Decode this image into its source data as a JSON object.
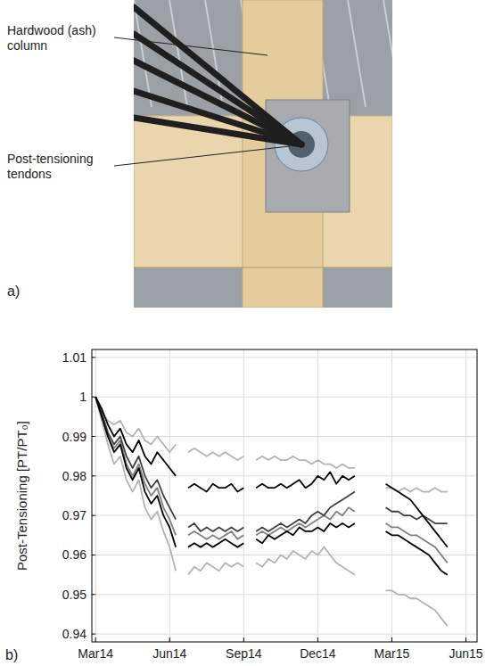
{
  "panel_a": {
    "labels": [
      "Hardwood (ash) column",
      "Post-tensioning tendons"
    ],
    "letter": "a)"
  },
  "chart_data": {
    "type": "line",
    "panel_label": "b)",
    "ylabel": "Post-Tensioning [PT/PT₀]",
    "x": [
      0,
      0.25,
      0.5,
      0.75,
      1,
      1.25,
      1.5,
      1.75,
      2,
      2.25,
      2.5,
      2.75,
      3,
      3.25,
      3.5,
      3.75,
      4,
      4.25,
      4.5,
      4.75,
      5,
      5.25,
      5.5,
      5.75,
      6,
      6.25,
      6.5,
      6.75,
      7,
      7.25,
      7.5,
      7.75,
      8,
      8.25,
      8.5,
      8.75,
      9,
      9.25,
      9.5,
      9.75,
      10,
      10.25,
      10.5,
      10.75,
      11,
      11.25,
      11.5,
      11.75,
      12,
      12.25,
      12.5,
      12.75,
      13,
      13.25,
      13.5,
      13.75,
      14,
      14.25
    ],
    "xlim": [
      -0.15,
      15.45
    ],
    "xticks": [
      {
        "value": 0,
        "label": "Mar14"
      },
      {
        "value": 3,
        "label": "Jun14"
      },
      {
        "value": 6,
        "label": "Sep14"
      },
      {
        "value": 9,
        "label": "Dec14"
      },
      {
        "value": 12,
        "label": "Mar15"
      },
      {
        "value": 15,
        "label": "Jun15"
      }
    ],
    "ylim": [
      0.938,
      1.012
    ],
    "yticks": [
      0.94,
      0.95,
      0.96,
      0.97,
      0.98,
      0.99,
      1,
      1.01
    ],
    "grid": true,
    "series": [
      {
        "color": "#b3b3b3",
        "values": [
          1.0,
          0.996,
          0.994,
          0.993,
          0.994,
          0.991,
          0.99,
          0.992,
          0.989,
          0.988,
          0.99,
          0.988,
          0.986,
          0.988,
          null,
          0.986,
          0.987,
          0.986,
          0.985,
          0.986,
          0.985,
          0.986,
          0.985,
          0.984,
          0.985,
          null,
          0.984,
          0.985,
          0.984,
          0.985,
          0.984,
          0.984,
          0.985,
          0.984,
          0.984,
          0.983,
          0.984,
          0.983,
          0.983,
          0.982,
          0.983,
          0.982,
          0.982,
          null,
          null,
          null,
          null,
          0.977,
          0.977,
          0.976,
          0.977,
          0.976,
          0.977,
          0.976,
          0.976,
          0.977,
          0.976,
          0.976
        ]
      },
      {
        "color": "#b3b3b3",
        "values": [
          1.0,
          0.994,
          0.988,
          0.983,
          0.985,
          0.979,
          0.976,
          0.979,
          0.972,
          0.969,
          0.971,
          0.966,
          0.962,
          0.956,
          null,
          0.955,
          0.957,
          0.956,
          0.958,
          0.957,
          0.956,
          0.958,
          0.957,
          0.958,
          0.957,
          null,
          0.958,
          0.957,
          0.959,
          0.958,
          0.96,
          0.959,
          0.961,
          0.96,
          0.959,
          0.961,
          0.96,
          0.962,
          0.96,
          0.958,
          0.957,
          0.956,
          0.955,
          null,
          null,
          null,
          null,
          0.951,
          0.951,
          0.95,
          0.95,
          0.949,
          0.949,
          0.948,
          0.947,
          0.946,
          0.944,
          0.942
        ]
      },
      {
        "color": "#808080",
        "values": [
          1.0,
          0.995,
          0.99,
          0.987,
          0.989,
          0.983,
          0.98,
          0.983,
          0.978,
          0.975,
          0.977,
          0.972,
          0.969,
          0.965,
          null,
          0.965,
          0.966,
          0.965,
          0.964,
          0.965,
          0.964,
          0.965,
          0.966,
          0.964,
          0.965,
          null,
          0.965,
          0.966,
          0.965,
          0.966,
          0.967,
          0.966,
          0.967,
          0.968,
          0.967,
          0.968,
          0.969,
          0.97,
          0.969,
          0.971,
          0.97,
          0.972,
          0.971,
          null,
          null,
          null,
          null,
          0.968,
          0.967,
          0.967,
          0.966,
          0.965,
          0.965,
          0.964,
          0.963,
          0.962,
          0.96,
          0.958
        ]
      },
      {
        "color": "#404040",
        "values": [
          1.0,
          0.996,
          0.991,
          0.988,
          0.99,
          0.985,
          0.982,
          0.985,
          0.98,
          0.977,
          0.979,
          0.975,
          0.972,
          0.969,
          null,
          0.967,
          0.968,
          0.966,
          0.967,
          0.966,
          0.967,
          0.966,
          0.967,
          0.966,
          0.967,
          null,
          0.966,
          0.967,
          0.966,
          0.967,
          0.968,
          0.967,
          0.968,
          0.969,
          0.968,
          0.97,
          0.971,
          0.97,
          0.972,
          0.973,
          0.974,
          0.975,
          0.976,
          null,
          null,
          null,
          null,
          0.972,
          0.971,
          0.971,
          0.97,
          0.97,
          0.969,
          0.97,
          0.969,
          0.968,
          0.968,
          0.968
        ]
      },
      {
        "color": "#000000",
        "values": [
          1.0,
          0.997,
          0.993,
          0.99,
          0.992,
          0.988,
          0.986,
          0.989,
          0.985,
          0.983,
          0.986,
          0.984,
          0.982,
          0.98,
          null,
          0.977,
          0.978,
          0.977,
          0.976,
          0.978,
          0.977,
          0.977,
          0.978,
          0.976,
          0.977,
          null,
          0.977,
          0.978,
          0.977,
          0.977,
          0.978,
          0.977,
          0.978,
          0.979,
          0.977,
          0.978,
          0.98,
          0.979,
          0.981,
          0.978,
          0.98,
          0.979,
          0.98,
          null,
          null,
          null,
          null,
          0.978,
          0.977,
          0.976,
          0.975,
          0.974,
          0.972,
          0.97,
          0.968,
          0.966,
          0.964,
          0.962
        ]
      },
      {
        "color": "#000000",
        "values": [
          1.0,
          0.995,
          0.99,
          0.986,
          0.988,
          0.982,
          0.979,
          0.982,
          0.976,
          0.973,
          0.975,
          0.97,
          0.967,
          0.962,
          null,
          0.962,
          0.963,
          0.962,
          0.963,
          0.962,
          0.963,
          0.964,
          0.963,
          0.962,
          0.963,
          null,
          0.964,
          0.963,
          0.965,
          0.964,
          0.965,
          0.966,
          0.965,
          0.967,
          0.966,
          0.966,
          0.967,
          0.966,
          0.968,
          0.967,
          0.968,
          0.967,
          0.968,
          null,
          null,
          null,
          null,
          0.966,
          0.965,
          0.965,
          0.964,
          0.963,
          0.962,
          0.961,
          0.96,
          0.958,
          0.956,
          0.955
        ]
      }
    ]
  }
}
